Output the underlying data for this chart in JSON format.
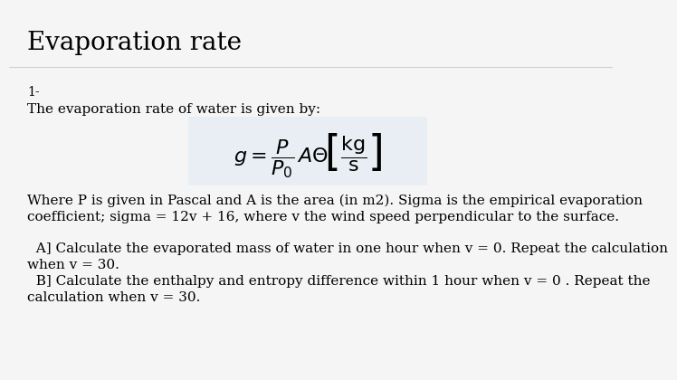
{
  "title": "Evaporation rate",
  "background_color": "#f5f5f5",
  "formula_box_color": "#e8eef3",
  "text_color": "#000000",
  "title_fontsize": 20,
  "body_fontsize": 11,
  "formula_fontsize": 16,
  "label": "1-",
  "line1": "The evaporation rate of water is given by:",
  "line2": "Where P is given in Pascal and A is the area (in m2). Sigma is the empirical evaporation",
  "line3": "coefficient; sigma = 12v + 16, where v the wind speed perpendicular to the surface.",
  "lineA1": "  A] Calculate the evaporated mass of water in one hour when v = 0. Repeat the calculation",
  "lineA2": "when v = 30.",
  "lineB1": "  B] Calculate the enthalpy and entropy difference within 1 hour when v = 0 . Repeat the",
  "lineB2": "calculation when v = 30."
}
